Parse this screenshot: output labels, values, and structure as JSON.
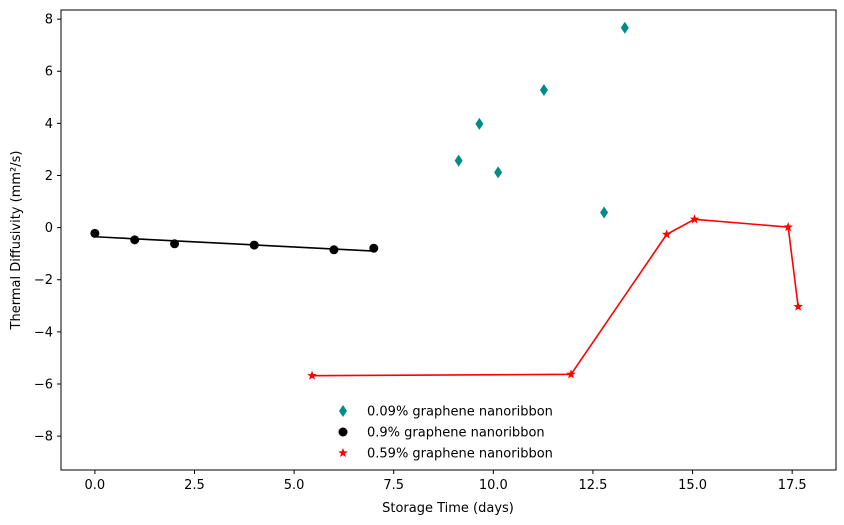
{
  "chart_data": {
    "type": "scatter",
    "title": "",
    "xlabel": "Storage Time (days)",
    "ylabel": "Thermal Diffusivity (mm²/s)",
    "xlim": [
      -0.85,
      18.6
    ],
    "ylim": [
      -9.3,
      8.35
    ],
    "xticks": [
      0.0,
      2.5,
      5.0,
      7.5,
      10.0,
      12.5,
      15.0,
      17.5
    ],
    "xtick_labels": [
      "0.0",
      "2.5",
      "5.0",
      "7.5",
      "10.0",
      "12.5",
      "15.0",
      "17.5"
    ],
    "yticks": [
      -8,
      -6,
      -4,
      -2,
      0,
      2,
      4,
      6,
      8
    ],
    "ytick_labels": [
      "−8",
      "−6",
      "−4",
      "−2",
      "0",
      "2",
      "4",
      "6",
      "8"
    ],
    "grid": false,
    "legend_position": "lower-center",
    "series": [
      {
        "name": "0.09% graphene nanoribbon",
        "marker": "diamond",
        "color": "#008b8b",
        "line": false,
        "points": [
          {
            "x": 9.13,
            "y": 2.57
          },
          {
            "x": 9.65,
            "y": 3.98
          },
          {
            "x": 10.12,
            "y": 2.12
          },
          {
            "x": 11.27,
            "y": 5.28
          },
          {
            "x": 12.78,
            "y": 0.58
          },
          {
            "x": 13.3,
            "y": 7.67
          }
        ]
      },
      {
        "name": "0.9% graphene nanoribbon",
        "marker": "circle",
        "color": "#000000",
        "line": false,
        "points": [
          {
            "x": 0.0,
            "y": -0.22
          },
          {
            "x": 1.0,
            "y": -0.47
          },
          {
            "x": 2.0,
            "y": -0.62
          },
          {
            "x": 4.0,
            "y": -0.67
          },
          {
            "x": 6.0,
            "y": -0.85
          },
          {
            "x": 7.0,
            "y": -0.79
          }
        ],
        "fit_line": {
          "color": "#000000",
          "points": [
            {
              "x": 0.0,
              "y": -0.35
            },
            {
              "x": 7.0,
              "y": -0.9
            }
          ]
        }
      },
      {
        "name": "0.59% graphene nanoribbon",
        "marker": "star",
        "color": "#ff0000",
        "line": true,
        "points": [
          {
            "x": 5.45,
            "y": -5.68
          },
          {
            "x": 11.95,
            "y": -5.63
          },
          {
            "x": 14.35,
            "y": -0.26
          },
          {
            "x": 15.05,
            "y": 0.32
          },
          {
            "x": 17.4,
            "y": 0.02
          },
          {
            "x": 17.65,
            "y": -3.03
          }
        ]
      }
    ]
  }
}
